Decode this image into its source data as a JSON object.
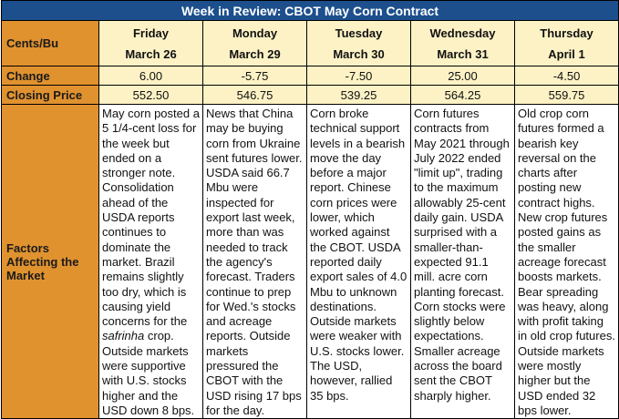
{
  "title": "Week in Review: CBOT May Corn Contract",
  "row_labels": {
    "units": "Cents/Bu",
    "change": "Change",
    "closing": "Closing Price",
    "factors": "Factors Affecting the Market"
  },
  "days": [
    {
      "day": "Friday",
      "date": "March 26",
      "change": "6.00",
      "close": "552.50",
      "factors": "May corn posted a 5 1/4-cent loss for the week but ended on a stronger note. Consolidation ahead of the USDA reports continues to dominate the market. Brazil remains slightly too dry, which is causing yield concerns for the",
      "factors_italic": "safrinha",
      "factors_tail": "crop. Outside markets were supportive with U.S. stocks higher and the USD down 8 bps."
    },
    {
      "day": "Monday",
      "date": "March 29",
      "change": "-5.75",
      "close": "546.75",
      "factors": "News that China may be buying corn from Ukraine sent futures lower. USDA said 66.7 Mbu were inspected for export last week, more than was needed to track the agency's forecast. Traders continue to prep for Wed.'s stocks and acreage reports. Outside markets pressured the CBOT with the USD rising 17 bps for the day."
    },
    {
      "day": "Tuesday",
      "date": "March 30",
      "change": "-7.50",
      "close": "539.25",
      "factors": "Corn broke technical support levels in a bearish move the day before a major report. Chinese corn prices were lower, which worked against the CBOT. USDA reported daily export sales of 4.0 Mbu to unknown destinations. Outside markets were weaker with U.S. stocks lower. The USD, however, rallied 35 bps."
    },
    {
      "day": "Wednesday",
      "date": "March 31",
      "change": "25.00",
      "close": "564.25",
      "factors": "Corn futures contracts from May 2021 through July 2022 ended \"limit up\", trading to the maximum allowably 25-cent daily gain. USDA surprised with a smaller-than-expected 91.1 mill. acre corn planting forecast. Corn stocks were slightly below expectations. Smaller acreage across the board sent the CBOT sharply higher."
    },
    {
      "day": "Thursday",
      "date": "April 1",
      "change": "-4.50",
      "close": "559.75",
      "factors": "Old crop corn futures formed a bearish key reversal on the charts after posting new contract highs. New crop futures posted gains as the smaller acreage forecast boosts markets. Bear spreading was heavy, along with profit taking in old crop futures. Outside markets were mostly higher but the USD ended 32 bps lower."
    }
  ],
  "colors": {
    "title_bg": "#1c4f8c",
    "label_bg": "#e0922f",
    "cell_bg": "#fdf2c5"
  }
}
